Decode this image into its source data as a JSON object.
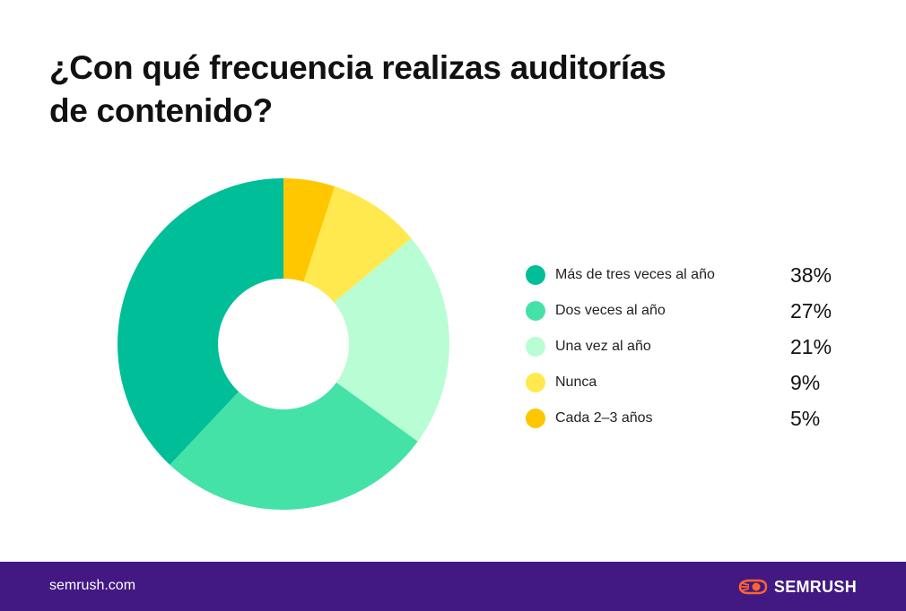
{
  "title_lines": [
    "¿Con qué frecuencia realizas auditorías",
    "de contenido?"
  ],
  "chart_data": {
    "type": "pie",
    "donut": true,
    "categories": [
      "Más de tres veces al año",
      "Dos veces al año",
      "Una vez al año",
      "Nunca",
      "Cada 2–3 años"
    ],
    "values": [
      38,
      27,
      21,
      9,
      5
    ],
    "value_labels": [
      "38%",
      "27%",
      "21%",
      "9%",
      "5%"
    ],
    "colors": [
      "#00BE98",
      "#45E2A7",
      "#B8FDD3",
      "#FFE94F",
      "#FFC700"
    ],
    "legend_position": "right",
    "slice_order_clockwise_from_top": [
      "Cada 2–3 años",
      "Nunca",
      "Una vez al año",
      "Dos veces al año",
      "Más de tres veces al año"
    ]
  },
  "footer": {
    "url": "semrush.com",
    "brand": "SEMRUSH",
    "brand_icon": "semrush-logo-icon",
    "background": "#421983",
    "brand_icon_color": "#FF642D"
  }
}
